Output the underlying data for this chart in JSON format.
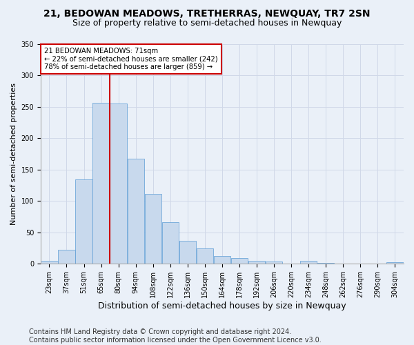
{
  "title": "21, BEDOWAN MEADOWS, TRETHERRAS, NEWQUAY, TR7 2SN",
  "subtitle": "Size of property relative to semi-detached houses in Newquay",
  "xlabel": "Distribution of semi-detached houses by size in Newquay",
  "ylabel": "Number of semi-detached properties",
  "bin_labels": [
    "23sqm",
    "37sqm",
    "51sqm",
    "65sqm",
    "80sqm",
    "94sqm",
    "108sqm",
    "122sqm",
    "136sqm",
    "150sqm",
    "164sqm",
    "178sqm",
    "192sqm",
    "206sqm",
    "220sqm",
    "234sqm",
    "248sqm",
    "262sqm",
    "276sqm",
    "290sqm",
    "304sqm"
  ],
  "bar_values": [
    5,
    22,
    135,
    257,
    255,
    168,
    111,
    66,
    37,
    25,
    13,
    9,
    5,
    4,
    0,
    5,
    2,
    0,
    0,
    0,
    3
  ],
  "bar_color": "#c8d9ed",
  "bar_edge_color": "#5b9bd5",
  "grid_color": "#d0d8e8",
  "background_color": "#eaf0f8",
  "red_line_color": "#cc0000",
  "annotation_text": "21 BEDOWAN MEADOWS: 71sqm\n← 22% of semi-detached houses are smaller (242)\n78% of semi-detached houses are larger (859) →",
  "annotation_box_color": "#ffffff",
  "annotation_box_edge": "#cc0000",
  "footer_text": "Contains HM Land Registry data © Crown copyright and database right 2024.\nContains public sector information licensed under the Open Government Licence v3.0.",
  "ylim": [
    0,
    350
  ],
  "title_fontsize": 10,
  "subtitle_fontsize": 9,
  "xlabel_fontsize": 9,
  "ylabel_fontsize": 8,
  "tick_fontsize": 7,
  "footer_fontsize": 7,
  "red_line_x": 3.5
}
